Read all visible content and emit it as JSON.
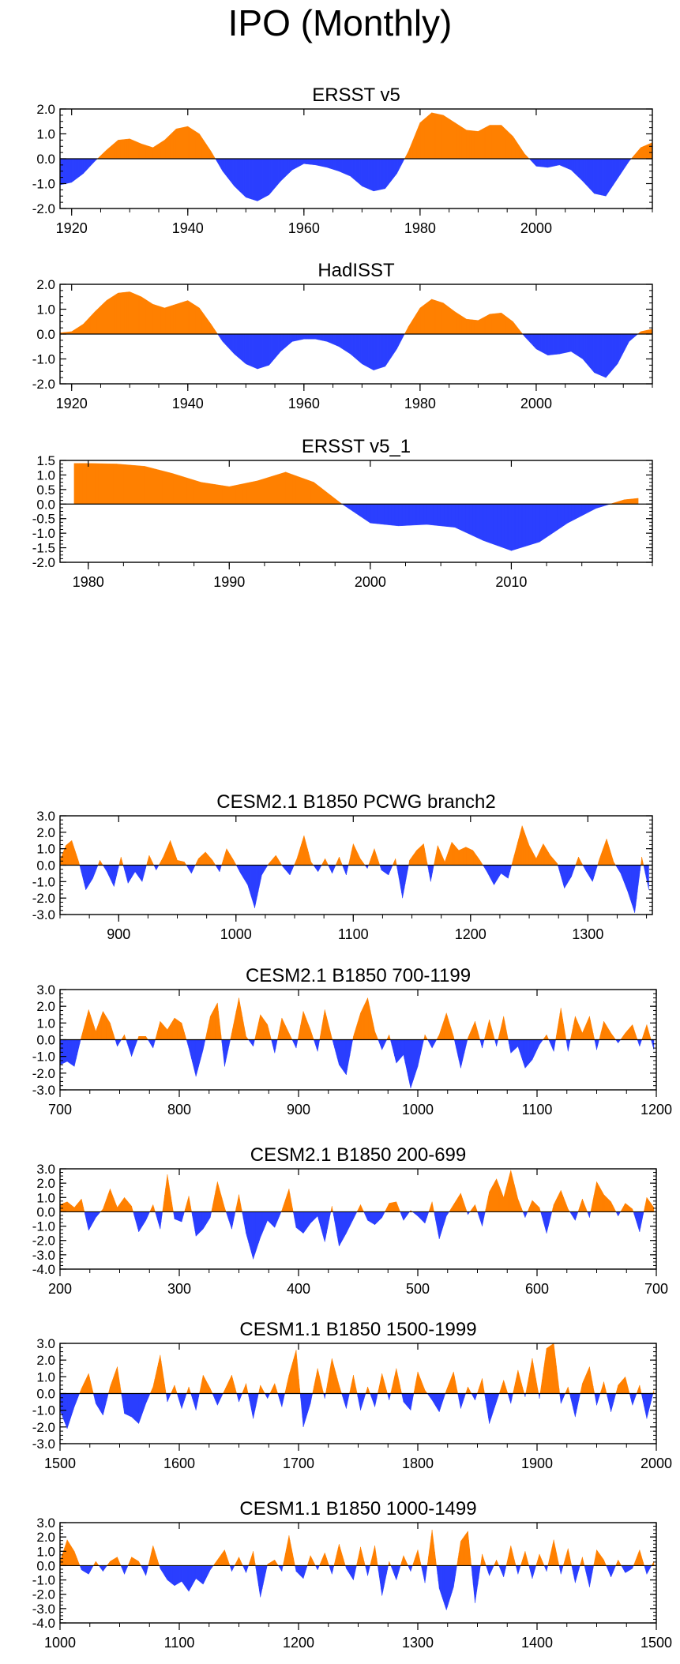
{
  "page_title": "IPO (Monthly)",
  "colors": {
    "positive": "#ff8000",
    "negative": "#2b3fff",
    "axis": "#000000"
  },
  "chart_data": [
    {
      "type": "area",
      "title": "ERSST v5",
      "xlim": [
        1918,
        2020
      ],
      "ylim": [
        -2.0,
        2.0
      ],
      "xticks": [
        1920,
        1940,
        1960,
        1980,
        2000
      ],
      "yticks": [
        -2.0,
        -1.0,
        0.0,
        1.0,
        2.0
      ],
      "ytick_labels": [
        "-2.0",
        "-1.0",
        "0.0",
        "1.0",
        "2.0"
      ],
      "x": [
        1918,
        1920,
        1922,
        1924,
        1926,
        1928,
        1930,
        1932,
        1934,
        1936,
        1938,
        1940,
        1942,
        1944,
        1946,
        1948,
        1950,
        1952,
        1954,
        1956,
        1958,
        1960,
        1962,
        1964,
        1966,
        1968,
        1970,
        1972,
        1974,
        1976,
        1978,
        1980,
        1982,
        1984,
        1986,
        1988,
        1990,
        1992,
        1994,
        1996,
        1998,
        2000,
        2002,
        2004,
        2006,
        2008,
        2010,
        2012,
        2014,
        2016,
        2018,
        2020
      ],
      "values": [
        -1.05,
        -0.95,
        -0.6,
        -0.1,
        0.35,
        0.75,
        0.8,
        0.6,
        0.45,
        0.75,
        1.2,
        1.3,
        1.0,
        0.3,
        -0.5,
        -1.1,
        -1.55,
        -1.7,
        -1.45,
        -0.9,
        -0.45,
        -0.2,
        -0.25,
        -0.35,
        -0.5,
        -0.7,
        -1.1,
        -1.3,
        -1.2,
        -0.6,
        0.3,
        1.45,
        1.85,
        1.75,
        1.45,
        1.15,
        1.1,
        1.35,
        1.35,
        0.9,
        0.2,
        -0.3,
        -0.35,
        -0.25,
        -0.45,
        -0.9,
        -1.4,
        -1.5,
        -0.8,
        -0.1,
        0.45,
        0.65
      ]
    },
    {
      "type": "area",
      "title": "HadISST",
      "xlim": [
        1918,
        2020
      ],
      "ylim": [
        -2.0,
        2.0
      ],
      "xticks": [
        1920,
        1940,
        1960,
        1980,
        2000
      ],
      "yticks": [
        -2.0,
        -1.0,
        0.0,
        1.0,
        2.0
      ],
      "ytick_labels": [
        "-2.0",
        "-1.0",
        "0.0",
        "1.0",
        "2.0"
      ],
      "x": [
        1918,
        1920,
        1922,
        1924,
        1926,
        1928,
        1930,
        1932,
        1934,
        1936,
        1938,
        1940,
        1942,
        1944,
        1946,
        1948,
        1950,
        1952,
        1954,
        1956,
        1958,
        1960,
        1962,
        1964,
        1966,
        1968,
        1970,
        1972,
        1974,
        1976,
        1978,
        1980,
        1982,
        1984,
        1986,
        1988,
        1990,
        1992,
        1994,
        1996,
        1998,
        2000,
        2002,
        2004,
        2006,
        2008,
        2010,
        2012,
        2014,
        2016,
        2018,
        2020
      ],
      "values": [
        0.05,
        0.1,
        0.4,
        0.9,
        1.35,
        1.65,
        1.7,
        1.5,
        1.2,
        1.05,
        1.2,
        1.35,
        1.05,
        0.4,
        -0.3,
        -0.8,
        -1.2,
        -1.4,
        -1.25,
        -0.7,
        -0.3,
        -0.2,
        -0.2,
        -0.3,
        -0.5,
        -0.8,
        -1.2,
        -1.45,
        -1.3,
        -0.6,
        0.3,
        1.05,
        1.4,
        1.25,
        0.9,
        0.6,
        0.55,
        0.8,
        0.85,
        0.5,
        -0.1,
        -0.6,
        -0.85,
        -0.8,
        -0.7,
        -1.0,
        -1.55,
        -1.75,
        -1.2,
        -0.3,
        0.1,
        0.2
      ]
    },
    {
      "type": "area",
      "title": "ERSST v5_1",
      "xlim": [
        1978,
        2020
      ],
      "ylim": [
        -2.0,
        1.5
      ],
      "xticks": [
        1980,
        1990,
        2000,
        2010
      ],
      "yticks": [
        -2.0,
        -1.5,
        -1.0,
        -0.5,
        0.0,
        0.5,
        1.0,
        1.5
      ],
      "ytick_labels": [
        "-2.0",
        "-1.5",
        "-1.0",
        "-0.5",
        "0.0",
        "0.5",
        "1.0",
        "1.5"
      ],
      "x": [
        1979,
        1980,
        1982,
        1984,
        1986,
        1988,
        1990,
        1992,
        1994,
        1996,
        1998,
        2000,
        2002,
        2004,
        2006,
        2008,
        2010,
        2012,
        2014,
        2016,
        2018,
        2019
      ],
      "values": [
        1.4,
        1.4,
        1.38,
        1.3,
        1.05,
        0.75,
        0.6,
        0.8,
        1.1,
        0.75,
        0.0,
        -0.65,
        -0.75,
        -0.7,
        -0.8,
        -1.25,
        -1.6,
        -1.3,
        -0.65,
        -0.15,
        0.15,
        0.2
      ]
    },
    {
      "type": "area",
      "title": "CESM2.1 B1850 PCWG branch2",
      "xlim": [
        850,
        1355
      ],
      "ylim": [
        -3.0,
        3.0
      ],
      "xticks": [
        900,
        1000,
        1100,
        1200,
        1300
      ],
      "yticks": [
        -3.0,
        -2.0,
        -1.0,
        0.0,
        1.0,
        2.0,
        3.0
      ],
      "ytick_labels": [
        "-3.0",
        "-2.0",
        "-1.0",
        "0.0",
        "1.0",
        "2.0",
        "3.0"
      ],
      "x": [
        850,
        855,
        860,
        866,
        872,
        878,
        884,
        890,
        896,
        902,
        908,
        914,
        920,
        926,
        932,
        938,
        944,
        950,
        956,
        962,
        968,
        974,
        980,
        986,
        992,
        998,
        1004,
        1010,
        1016,
        1022,
        1028,
        1034,
        1040,
        1046,
        1052,
        1058,
        1064,
        1070,
        1076,
        1082,
        1088,
        1094,
        1100,
        1106,
        1112,
        1118,
        1124,
        1130,
        1136,
        1142,
        1148,
        1154,
        1160,
        1166,
        1172,
        1178,
        1184,
        1190,
        1196,
        1202,
        1208,
        1214,
        1220,
        1226,
        1232,
        1238,
        1244,
        1250,
        1256,
        1262,
        1268,
        1274,
        1280,
        1286,
        1292,
        1298,
        1304,
        1310,
        1316,
        1322,
        1328,
        1334,
        1340,
        1346,
        1352
      ],
      "values": [
        0.3,
        1.2,
        1.5,
        0.2,
        -1.5,
        -0.8,
        0.3,
        -0.4,
        -1.3,
        0.5,
        -1.1,
        -0.4,
        -1.0,
        0.6,
        -0.3,
        0.5,
        1.5,
        0.3,
        0.2,
        -0.5,
        0.4,
        0.8,
        0.3,
        -0.4,
        1.0,
        0.3,
        -0.5,
        -1.2,
        -2.6,
        -0.6,
        0.1,
        0.6,
        -0.1,
        -0.6,
        0.4,
        1.8,
        0.2,
        -0.4,
        0.4,
        -0.5,
        0.5,
        -0.6,
        1.3,
        0.4,
        -0.2,
        1.0,
        -0.3,
        -0.6,
        0.4,
        -2.0,
        0.3,
        0.9,
        1.3,
        -1.0,
        1.2,
        0.2,
        1.4,
        0.9,
        1.1,
        0.9,
        0.3,
        -0.4,
        -1.2,
        -0.5,
        -0.8,
        0.8,
        2.4,
        1.2,
        0.4,
        1.3,
        0.6,
        0.1,
        -1.4,
        -0.7,
        0.5,
        -0.3,
        -1.0,
        0.4,
        1.6,
        0.2,
        -0.5,
        -1.6,
        -2.9,
        0.5,
        -1.5
      ]
    },
    {
      "type": "area",
      "title": "CESM2.1 B1850 700-1199",
      "xlim": [
        700,
        1200
      ],
      "ylim": [
        -3.0,
        3.0
      ],
      "xticks": [
        700,
        800,
        900,
        1000,
        1100,
        1200
      ],
      "yticks": [
        -3.0,
        -2.0,
        -1.0,
        0.0,
        1.0,
        2.0,
        3.0
      ],
      "ytick_labels": [
        "-3.0",
        "-2.0",
        "-1.0",
        "0.0",
        "1.0",
        "2.0",
        "3.0"
      ],
      "x": [
        700,
        706,
        712,
        718,
        724,
        730,
        736,
        742,
        748,
        754,
        760,
        766,
        772,
        778,
        784,
        790,
        796,
        802,
        808,
        814,
        820,
        826,
        832,
        838,
        844,
        850,
        856,
        862,
        868,
        874,
        880,
        886,
        892,
        898,
        904,
        910,
        916,
        922,
        928,
        934,
        940,
        946,
        952,
        958,
        964,
        970,
        976,
        982,
        988,
        994,
        1000,
        1006,
        1012,
        1018,
        1024,
        1030,
        1036,
        1042,
        1048,
        1054,
        1060,
        1066,
        1072,
        1078,
        1084,
        1090,
        1096,
        1102,
        1108,
        1114,
        1120,
        1126,
        1132,
        1138,
        1144,
        1150,
        1156,
        1162,
        1168,
        1174,
        1180,
        1186,
        1192,
        1198
      ],
      "values": [
        -1.5,
        -1.3,
        -1.6,
        0.2,
        1.8,
        0.5,
        1.7,
        1.0,
        -0.4,
        0.3,
        -1.0,
        0.2,
        0.2,
        -0.5,
        1.1,
        0.6,
        1.3,
        1.0,
        -0.5,
        -2.2,
        -0.6,
        1.4,
        2.2,
        -1.6,
        0.4,
        2.5,
        0.2,
        -0.4,
        1.5,
        0.9,
        -0.8,
        1.3,
        0.4,
        -0.5,
        1.7,
        0.6,
        -0.7,
        1.8,
        0.1,
        -1.5,
        -2.1,
        0.2,
        1.6,
        2.5,
        0.5,
        -0.6,
        0.3,
        -1.4,
        -0.9,
        -2.9,
        -1.6,
        0.3,
        -0.5,
        0.3,
        1.6,
        0.2,
        -1.7,
        0.1,
        1.1,
        -0.5,
        1.2,
        -0.4,
        1.4,
        -0.8,
        -0.4,
        -1.7,
        -1.2,
        -0.3,
        0.3,
        -0.7,
        1.9,
        -0.7,
        1.4,
        0.4,
        1.4,
        -0.6,
        1.1,
        0.4,
        -0.2,
        0.4,
        0.9,
        -0.4,
        0.9,
        -0.6
      ]
    },
    {
      "type": "area",
      "title": "CESM2.1 B1850 200-699",
      "xlim": [
        200,
        700
      ],
      "ylim": [
        -4.0,
        3.0
      ],
      "xticks": [
        200,
        300,
        400,
        500,
        600,
        700
      ],
      "yticks": [
        -4.0,
        -3.0,
        -2.0,
        -1.0,
        0.0,
        1.0,
        2.0,
        3.0
      ],
      "ytick_labels": [
        "-4.0",
        "-3.0",
        "-2.0",
        "-1.0",
        "0.0",
        "1.0",
        "2.0",
        "3.0"
      ],
      "x": [
        200,
        206,
        212,
        218,
        224,
        230,
        236,
        242,
        248,
        254,
        260,
        266,
        272,
        278,
        284,
        290,
        296,
        302,
        308,
        314,
        320,
        326,
        332,
        338,
        344,
        350,
        356,
        362,
        368,
        374,
        380,
        386,
        392,
        398,
        404,
        410,
        416,
        422,
        428,
        434,
        440,
        446,
        452,
        458,
        464,
        470,
        476,
        482,
        488,
        494,
        500,
        506,
        512,
        518,
        524,
        530,
        536,
        542,
        548,
        554,
        560,
        566,
        572,
        578,
        584,
        590,
        596,
        602,
        608,
        614,
        620,
        626,
        632,
        638,
        644,
        650,
        656,
        662,
        668,
        674,
        680,
        686,
        692,
        698
      ],
      "values": [
        0.5,
        0.7,
        0.3,
        0.9,
        -1.3,
        -0.4,
        0.2,
        1.6,
        0.3,
        1.0,
        0.4,
        -1.4,
        -0.6,
        0.5,
        -1.2,
        2.6,
        -0.5,
        -0.7,
        1.1,
        -1.7,
        -1.2,
        -0.4,
        2.1,
        0.3,
        -1.2,
        1.2,
        -1.5,
        -3.3,
        -1.8,
        -0.6,
        -1.1,
        0.1,
        1.6,
        -1.1,
        -1.5,
        -0.8,
        -0.3,
        -2.1,
        0.4,
        -2.4,
        -1.5,
        -0.5,
        0.5,
        -0.6,
        -0.9,
        -0.4,
        0.6,
        0.7,
        -0.6,
        0.1,
        -0.3,
        -0.8,
        0.7,
        -1.9,
        -0.3,
        0.5,
        1.3,
        -0.2,
        0.5,
        -1.0,
        1.4,
        2.3,
        1.0,
        2.9,
        0.9,
        -0.4,
        0.8,
        0.3,
        -1.5,
        0.5,
        1.5,
        0.2,
        -0.6,
        0.9,
        -0.4,
        2.1,
        1.2,
        0.7,
        -0.3,
        0.6,
        0.2,
        -1.4,
        1.0,
        0.3
      ]
    },
    {
      "type": "area",
      "title": "CESM1.1 B1850 1500-1999",
      "xlim": [
        1500,
        2000
      ],
      "ylim": [
        -3.0,
        3.0
      ],
      "xticks": [
        1500,
        1600,
        1700,
        1800,
        1900,
        2000
      ],
      "yticks": [
        -3.0,
        -2.0,
        -1.0,
        0.0,
        1.0,
        2.0,
        3.0
      ],
      "ytick_labels": [
        "-3.0",
        "-2.0",
        "-1.0",
        "0.0",
        "1.0",
        "2.0",
        "3.0"
      ],
      "x": [
        1500,
        1506,
        1512,
        1518,
        1524,
        1530,
        1536,
        1542,
        1548,
        1554,
        1560,
        1566,
        1572,
        1578,
        1584,
        1590,
        1596,
        1602,
        1608,
        1614,
        1620,
        1626,
        1632,
        1638,
        1644,
        1650,
        1656,
        1662,
        1668,
        1674,
        1680,
        1686,
        1692,
        1698,
        1704,
        1710,
        1716,
        1722,
        1728,
        1734,
        1740,
        1746,
        1752,
        1758,
        1764,
        1770,
        1776,
        1782,
        1788,
        1794,
        1800,
        1806,
        1812,
        1818,
        1824,
        1830,
        1836,
        1842,
        1848,
        1854,
        1860,
        1866,
        1872,
        1878,
        1884,
        1890,
        1896,
        1902,
        1908,
        1914,
        1920,
        1926,
        1932,
        1938,
        1944,
        1950,
        1956,
        1962,
        1968,
        1974,
        1980,
        1986,
        1992,
        1998
      ],
      "values": [
        -1.0,
        -2.1,
        -0.8,
        0.3,
        1.2,
        -0.6,
        -1.3,
        0.4,
        1.6,
        -1.2,
        -1.4,
        -1.8,
        -0.6,
        0.4,
        2.3,
        -0.5,
        0.5,
        -0.9,
        0.4,
        -1.0,
        1.1,
        0.3,
        -0.7,
        0.2,
        1.1,
        -0.5,
        0.6,
        -1.5,
        0.5,
        -0.3,
        0.6,
        -0.8,
        1.1,
        2.6,
        -2.0,
        -0.6,
        1.5,
        -0.3,
        2.1,
        0.5,
        -0.9,
        1.1,
        -1.0,
        0.4,
        -0.8,
        1.2,
        -0.4,
        1.5,
        -0.5,
        -1.0,
        1.3,
        0.2,
        -0.4,
        -1.1,
        0.2,
        1.3,
        -0.9,
        0.4,
        -0.4,
        0.9,
        -1.8,
        -0.5,
        0.8,
        -0.6,
        1.4,
        -0.2,
        2.1,
        -0.3,
        2.7,
        3.0,
        -0.6,
        0.4,
        -1.4,
        0.6,
        1.6,
        -0.7,
        0.7,
        -1.1,
        0.5,
        1.0,
        -0.7,
        0.5,
        -1.5,
        0.2
      ]
    },
    {
      "type": "area",
      "title": "CESM1.1 B1850 1000-1499",
      "xlim": [
        1000,
        1500
      ],
      "ylim": [
        -4.0,
        3.0
      ],
      "xticks": [
        1000,
        1100,
        1200,
        1300,
        1400,
        1500
      ],
      "yticks": [
        -4.0,
        -3.0,
        -2.0,
        -1.0,
        0.0,
        1.0,
        2.0,
        3.0
      ],
      "ytick_labels": [
        "-4.0",
        "-3.0",
        "-2.0",
        "-1.0",
        "0.0",
        "1.0",
        "2.0",
        "3.0"
      ],
      "x": [
        1000,
        1006,
        1012,
        1018,
        1024,
        1030,
        1036,
        1042,
        1048,
        1054,
        1060,
        1066,
        1072,
        1078,
        1084,
        1090,
        1096,
        1102,
        1108,
        1114,
        1120,
        1126,
        1132,
        1138,
        1144,
        1150,
        1156,
        1162,
        1168,
        1174,
        1180,
        1186,
        1192,
        1198,
        1204,
        1210,
        1216,
        1222,
        1228,
        1234,
        1240,
        1246,
        1252,
        1258,
        1264,
        1270,
        1276,
        1282,
        1288,
        1294,
        1300,
        1306,
        1312,
        1318,
        1324,
        1330,
        1336,
        1342,
        1348,
        1354,
        1360,
        1366,
        1372,
        1378,
        1384,
        1390,
        1396,
        1402,
        1408,
        1414,
        1420,
        1426,
        1432,
        1438,
        1444,
        1450,
        1456,
        1462,
        1468,
        1474,
        1480,
        1486,
        1492,
        1498
      ],
      "values": [
        0.3,
        1.8,
        1.0,
        -0.3,
        -0.6,
        0.3,
        -0.4,
        0.3,
        0.6,
        -0.6,
        0.6,
        0.3,
        -0.7,
        1.4,
        -0.2,
        -1.0,
        -1.4,
        -1.1,
        -1.8,
        -0.9,
        -1.3,
        -0.3,
        0.4,
        1.1,
        -0.4,
        0.6,
        -0.5,
        1.0,
        -2.2,
        0.1,
        0.4,
        -0.4,
        2.1,
        -0.4,
        -0.9,
        0.7,
        -0.3,
        0.9,
        -0.6,
        1.5,
        -0.2,
        -1.0,
        1.3,
        -0.7,
        1.4,
        -2.1,
        0.3,
        -1.0,
        0.7,
        -0.4,
        1.1,
        -1.2,
        2.5,
        -1.6,
        -3.1,
        -1.5,
        1.7,
        2.4,
        -2.6,
        0.8,
        -0.7,
        0.4,
        -0.8,
        1.4,
        -0.6,
        1.0,
        -0.9,
        0.8,
        -0.4,
        1.8,
        -0.6,
        1.2,
        -1.2,
        0.6,
        -1.5,
        1.1,
        0.4,
        -0.8,
        0.4,
        -0.5,
        -0.2,
        1.1,
        -0.6,
        0.3
      ]
    }
  ]
}
